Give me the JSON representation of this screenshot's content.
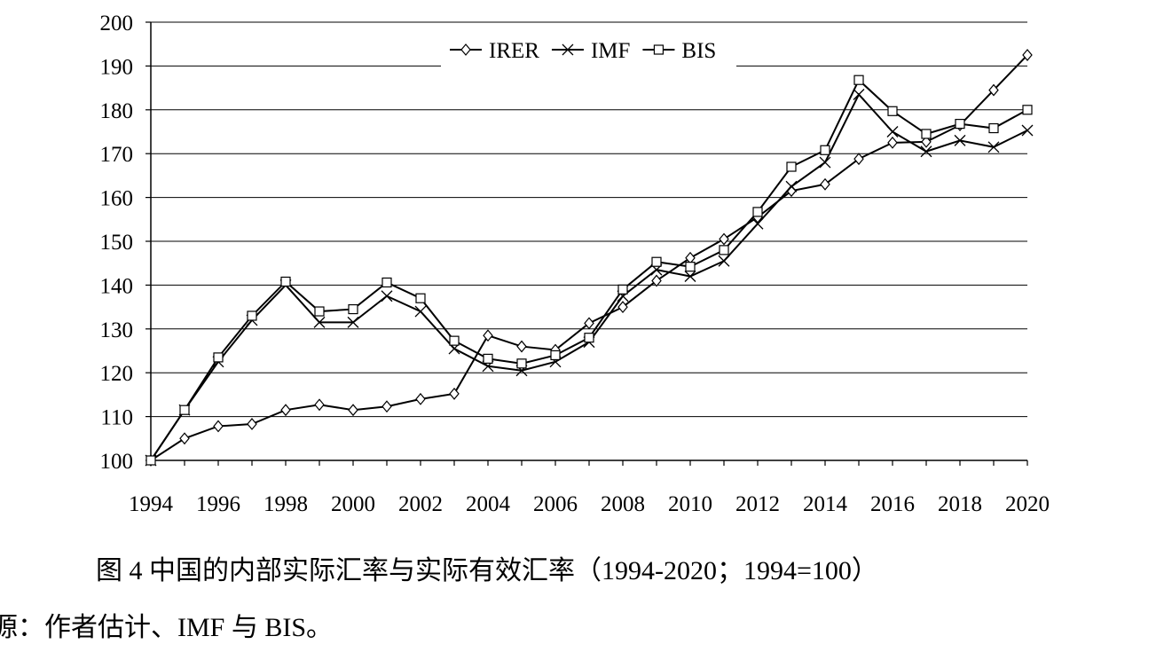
{
  "chart_data": {
    "type": "line",
    "title": "",
    "xlabel": "",
    "ylabel": "",
    "x": [
      1994,
      1995,
      1996,
      1997,
      1998,
      1999,
      2000,
      2001,
      2002,
      2003,
      2004,
      2005,
      2006,
      2007,
      2008,
      2009,
      2010,
      2011,
      2012,
      2013,
      2014,
      2015,
      2016,
      2017,
      2018,
      2019,
      2020
    ],
    "xlim": [
      1994,
      2020
    ],
    "ylim": [
      100,
      200
    ],
    "x_ticks": [
      "1994",
      "1996",
      "1998",
      "2000",
      "2002",
      "2004",
      "2006",
      "2008",
      "2010",
      "2012",
      "2014",
      "2016",
      "2018",
      "2020"
    ],
    "y_ticks": [
      "100",
      "110",
      "120",
      "130",
      "140",
      "150",
      "160",
      "170",
      "180",
      "190",
      "200"
    ],
    "grid": "horizontal",
    "legend_position": "top",
    "series": [
      {
        "name": "IRER",
        "marker": "diamond",
        "values": [
          100,
          105,
          107.8,
          108.3,
          111.5,
          112.7,
          111.5,
          112.3,
          114,
          115.2,
          128.5,
          126,
          125.2,
          131.3,
          135,
          141,
          146.2,
          150.5,
          155.5,
          161.5,
          163,
          168.8,
          172.5,
          172.7,
          176.5,
          184.5,
          192.5
        ]
      },
      {
        "name": "IMF",
        "marker": "x",
        "values": [
          100,
          111.5,
          122.5,
          132,
          140,
          131.5,
          131.5,
          137.5,
          134,
          125.5,
          121.5,
          120.5,
          122.5,
          127,
          137.5,
          143.5,
          142,
          145.5,
          154,
          162.5,
          168,
          183.5,
          175,
          170.5,
          173,
          171.5,
          175.3
        ]
      },
      {
        "name": "BIS",
        "marker": "square",
        "values": [
          100,
          111.5,
          123.5,
          133,
          140.8,
          134,
          134.5,
          140.6,
          137,
          127.3,
          123.2,
          122.1,
          124,
          128,
          139,
          145.3,
          144.2,
          148,
          156.7,
          167,
          170.8,
          186.8,
          179.7,
          174.5,
          176.8,
          175.8,
          180
        ]
      }
    ]
  },
  "caption": "图 4  中国的内部实际汇率与实际有效汇率（1994-2020；1994=100）",
  "source": "源：作者估计、IMF 与 BIS。"
}
